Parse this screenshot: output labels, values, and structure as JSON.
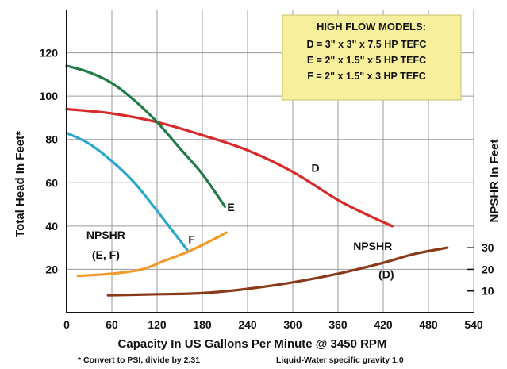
{
  "chart_data": {
    "type": "line",
    "xlabel": "Capacity In US Gallons Per Minute @ 3450 RPM",
    "ylabel": "Total Head In Feet*",
    "y2label": "NPSHR In Feet",
    "footnote_left": "* Convert to PSI, divide by 2.31",
    "footnote_right": "Liquid-Water specific gravity 1.0",
    "xlim": [
      0,
      540
    ],
    "ylim": [
      0,
      140
    ],
    "x_ticks": [
      "0",
      "60",
      "120",
      "180",
      "240",
      "300",
      "360",
      "420",
      "480",
      "540"
    ],
    "y_ticks": [
      "20",
      "40",
      "60",
      "80",
      "100",
      "120"
    ],
    "y2_ticks": [
      "10",
      "20",
      "30"
    ],
    "grid": true,
    "legend": {
      "title": "HIGH FLOW MODELS:",
      "lines": [
        "D = 3\" x 3\" x  7.5 HP TEFC",
        "E = 2\" x 1.5\" x 5 HP TEFC",
        "F = 2\" x 1.5\" x 3 HP TEFC"
      ],
      "placement": "top-right",
      "background": "#f7ef9c"
    },
    "series": [
      {
        "name": "D",
        "color": "#d82a2a",
        "x": [
          0,
          60,
          120,
          180,
          240,
          300,
          360,
          400,
          432
        ],
        "y": [
          94,
          92,
          88,
          82,
          75,
          65,
          52,
          45,
          40
        ]
      },
      {
        "name": "E",
        "color": "#1f7a45",
        "x": [
          0,
          30,
          60,
          90,
          120,
          150,
          180,
          210
        ],
        "y": [
          114,
          111,
          106,
          98,
          88,
          76,
          64,
          49
        ]
      },
      {
        "name": "F",
        "color": "#2aa6cc",
        "x": [
          0,
          30,
          60,
          90,
          120,
          160
        ],
        "y": [
          83,
          78,
          70,
          60,
          47,
          29
        ]
      },
      {
        "name": "NPSHR (E, F)",
        "color": "#f29a2e",
        "x": [
          15,
          60,
          100,
          130,
          160,
          190,
          212
        ],
        "y": [
          17,
          18,
          20,
          24,
          28,
          33,
          37
        ]
      },
      {
        "name": "NPSHR (D)",
        "color": "#8a3a18",
        "x": [
          55,
          120,
          180,
          240,
          300,
          360,
          420,
          460,
          505
        ],
        "y": [
          8,
          8.5,
          9,
          11,
          14,
          18,
          23,
          27,
          30
        ]
      }
    ],
    "annotations": [
      {
        "text": "D",
        "x": 330,
        "y": 65
      },
      {
        "text": "E",
        "x": 218,
        "y": 47
      },
      {
        "text": "F",
        "x": 166,
        "y": 32
      },
      {
        "text": "NPSHR",
        "x": 52,
        "y": 34
      },
      {
        "text": "(E, F)",
        "x": 52,
        "y": 25
      },
      {
        "text": "NPSHR",
        "x": 406,
        "y": 29
      },
      {
        "text": "(D)",
        "x": 424,
        "y": 16
      }
    ]
  }
}
